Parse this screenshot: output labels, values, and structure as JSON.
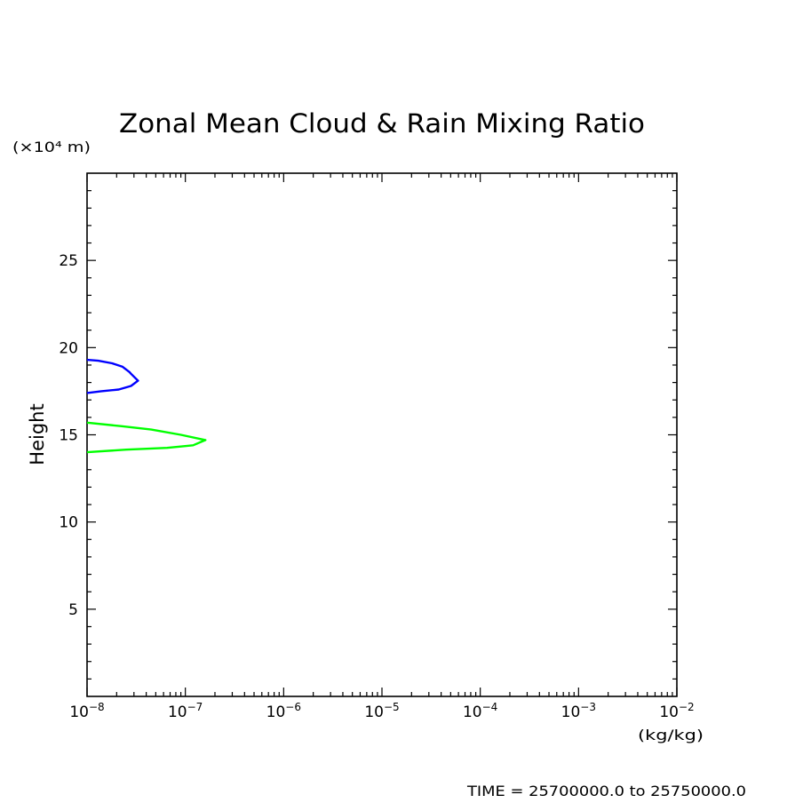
{
  "chart_data": {
    "type": "line",
    "title": "Zonal Mean Cloud & Rain Mixing Ratio",
    "ylabel": "Height",
    "y_unit": "(×10⁴ m)",
    "x_unit": "(kg/kg)",
    "x_scale": "log",
    "xlim": [
      1e-08,
      0.01
    ],
    "ylim": [
      0,
      30
    ],
    "x_ticks": [
      {
        "value": 1e-08,
        "base": "10",
        "exp": "−8"
      },
      {
        "value": 1e-07,
        "base": "10",
        "exp": "−7"
      },
      {
        "value": 1e-06,
        "base": "10",
        "exp": "−6"
      },
      {
        "value": 1e-05,
        "base": "10",
        "exp": "−5"
      },
      {
        "value": 0.0001,
        "base": "10",
        "exp": "−4"
      },
      {
        "value": 0.001,
        "base": "10",
        "exp": "−3"
      },
      {
        "value": 0.01,
        "base": "10",
        "exp": "−2"
      }
    ],
    "y_ticks": [
      {
        "value": 5,
        "label": "5"
      },
      {
        "value": 10,
        "label": "10"
      },
      {
        "value": 15,
        "label": "15"
      },
      {
        "value": 20,
        "label": "20"
      },
      {
        "value": 25,
        "label": "25"
      }
    ],
    "series": [
      {
        "color": "#0000ff",
        "points": [
          {
            "x": 1e-08,
            "y": 19.3
          },
          {
            "x": 1.3e-08,
            "y": 19.25
          },
          {
            "x": 1.8e-08,
            "y": 19.1
          },
          {
            "x": 2.3e-08,
            "y": 18.9
          },
          {
            "x": 2.7e-08,
            "y": 18.6
          },
          {
            "x": 2.8e-08,
            "y": 18.5
          },
          {
            "x": 3.3e-08,
            "y": 18.1
          },
          {
            "x": 2.8e-08,
            "y": 17.8
          },
          {
            "x": 2.1e-08,
            "y": 17.6
          },
          {
            "x": 1.4e-08,
            "y": 17.5
          },
          {
            "x": 1e-08,
            "y": 17.4
          }
        ]
      },
      {
        "color": "#00ff00",
        "points": [
          {
            "x": 1e-08,
            "y": 15.7
          },
          {
            "x": 2.2e-08,
            "y": 15.5
          },
          {
            "x": 4.5e-08,
            "y": 15.3
          },
          {
            "x": 9e-08,
            "y": 15.0
          },
          {
            "x": 1.6e-07,
            "y": 14.7
          },
          {
            "x": 1.2e-07,
            "y": 14.4
          },
          {
            "x": 6.5e-08,
            "y": 14.25
          },
          {
            "x": 2.5e-08,
            "y": 14.15
          },
          {
            "x": 1e-08,
            "y": 14.0
          }
        ]
      }
    ]
  },
  "footer": {
    "time_label": "TIME = 25700000.0 to 25750000.0"
  }
}
